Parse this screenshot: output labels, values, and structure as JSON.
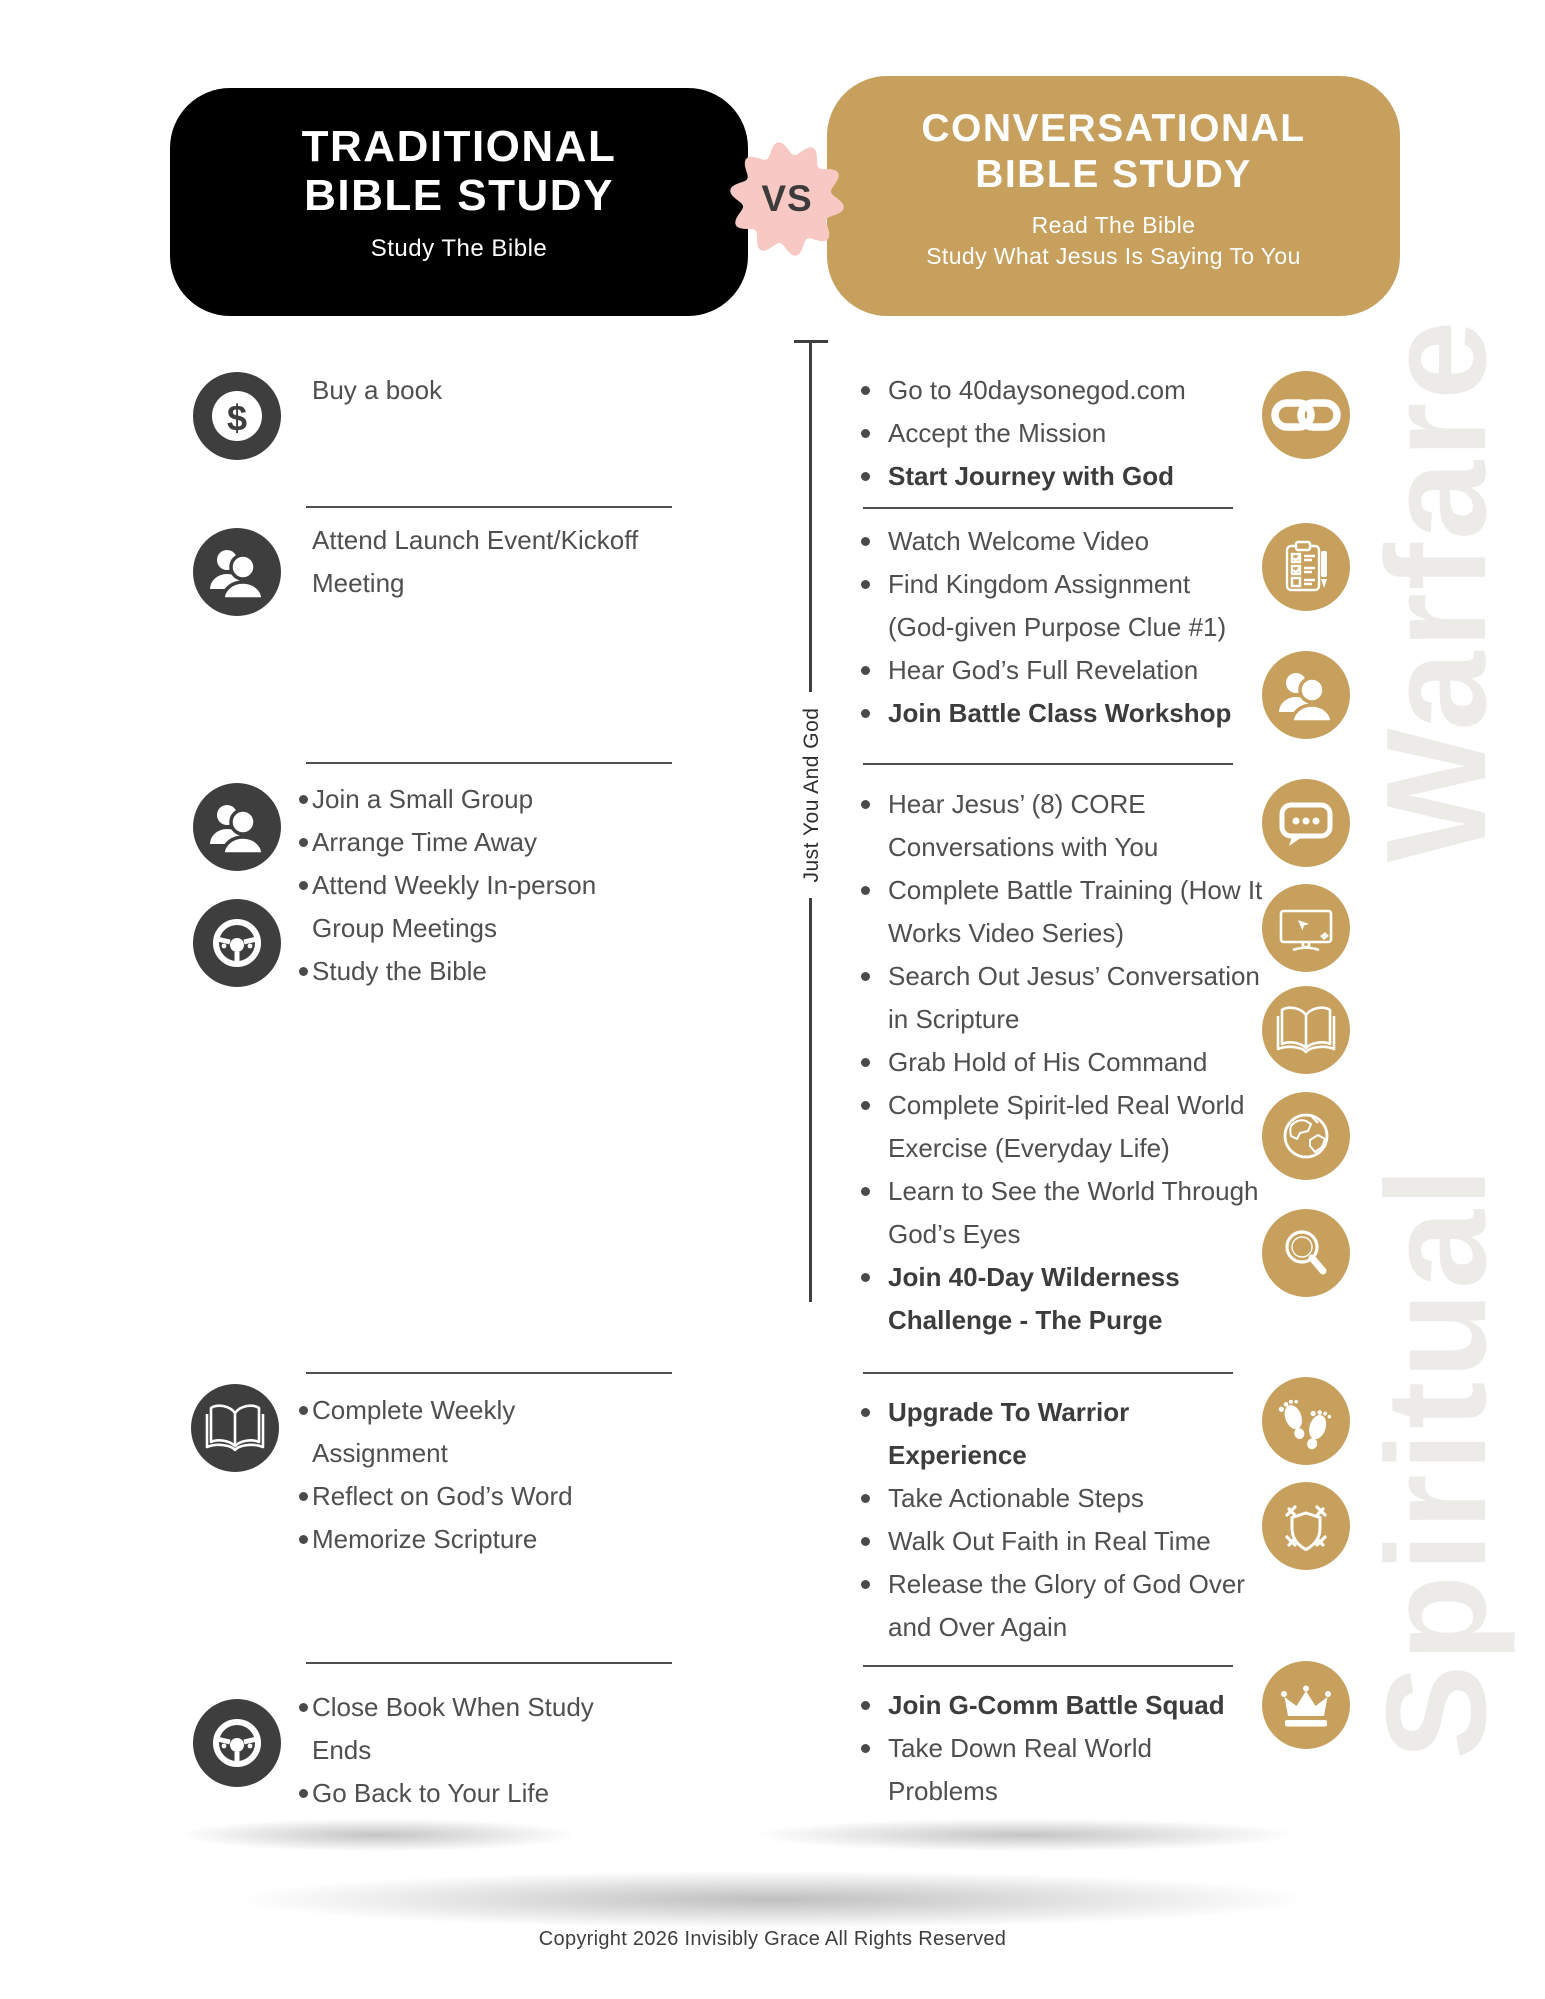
{
  "header": {
    "left": {
      "title_line1": "TRADITIONAL",
      "title_line2": "BIBLE STUDY",
      "subtitle": "Study The Bible"
    },
    "vs_badge": "VS",
    "right": {
      "title_line1": "CONVERSATIONAL",
      "title_line2": "BIBLE STUDY",
      "subtitle_line1": "Read The Bible",
      "subtitle_line2": "Study What Jesus Is Saying To You"
    }
  },
  "left_column": {
    "sections": [
      {
        "icons": [
          "dollar-icon"
        ],
        "bulleted": false,
        "items": [
          {
            "text": "Buy a book",
            "bold": false
          }
        ]
      },
      {
        "icons": [
          "users-icon"
        ],
        "bulleted": false,
        "items": [
          {
            "text": "Attend Launch Event/Kickoff Meeting",
            "bold": false
          }
        ]
      },
      {
        "icons": [
          "users-icon",
          "steering-wheel-icon"
        ],
        "bulleted": true,
        "items": [
          {
            "text": "Join a Small Group",
            "bold": false
          },
          {
            "text": "Arrange Time Away",
            "bold": false
          },
          {
            "text": "Attend Weekly In-person Group Meetings",
            "bold": false
          },
          {
            "text": "Study the Bible",
            "bold": false
          }
        ]
      },
      {
        "icons": [
          "open-book-icon"
        ],
        "bulleted": true,
        "items": [
          {
            "text": "Complete Weekly Assignment",
            "bold": false
          },
          {
            "text": "Reflect on God’s Word",
            "bold": false
          },
          {
            "text": "Memorize Scripture",
            "bold": false
          }
        ]
      },
      {
        "icons": [
          "steering-wheel-icon"
        ],
        "bulleted": true,
        "items": [
          {
            "text": "Close Book When Study Ends",
            "bold": false
          },
          {
            "text": "Go Back to Your Life",
            "bold": false
          }
        ]
      }
    ]
  },
  "connector": {
    "label": "Just You And God"
  },
  "right_column": {
    "sections": [
      {
        "icons": [
          "link-icon"
        ],
        "bulleted": true,
        "items": [
          {
            "text": "Go to 40daysonegod.com",
            "bold": false
          },
          {
            "text": "Accept the Mission",
            "bold": false
          },
          {
            "text": "Start Journey with God",
            "bold": true
          }
        ]
      },
      {
        "icons": [
          "clipboard-icon",
          "users-icon"
        ],
        "bulleted": true,
        "items": [
          {
            "text": "Watch Welcome Video",
            "bold": false
          },
          {
            "text": "Find Kingdom Assignment (God-given Purpose Clue #1)",
            "bold": false
          },
          {
            "text": "Hear God’s Full Revelation",
            "bold": false
          },
          {
            "text": "Join Battle Class Workshop",
            "bold": true
          }
        ]
      },
      {
        "icons": [
          "chat-icon",
          "monitor-icon",
          "open-book-icon",
          "globe-icon",
          "search-icon"
        ],
        "bulleted": true,
        "items": [
          {
            "text": "Hear Jesus’ (8) CORE Conversations with You",
            "bold": false
          },
          {
            "text": "Complete Battle  Training (How It Works Video Series)",
            "bold": false
          },
          {
            "text": "Search Out Jesus’ Conversation in Scripture",
            "bold": false
          },
          {
            "text": "Grab Hold of His Command",
            "bold": false
          },
          {
            "text": "Complete Spirit-led Real World Exercise (Everyday Life)",
            "bold": false
          },
          {
            "text": "Learn to See the World Through God’s Eyes",
            "bold": false
          },
          {
            "text": "Join 40-Day Wilderness Challenge - The Purge",
            "bold": true
          }
        ]
      },
      {
        "icons": [
          "footprints-icon",
          "shield-swords-icon"
        ],
        "bulleted": true,
        "items": [
          {
            "text": "Upgrade To Warrior Experience",
            "bold": true
          },
          {
            "text": "Take Actionable Steps",
            "bold": false
          },
          {
            "text": "Walk Out Faith in Real Time",
            "bold": false
          },
          {
            "text": "Release the Glory of God Over and Over Again",
            "bold": false
          }
        ]
      },
      {
        "icons": [
          "crown-icon"
        ],
        "bulleted": true,
        "items": [
          {
            "text": "Join G-Comm Battle Squad",
            "bold": true
          },
          {
            "text": "Take Down Real World Problems",
            "bold": false
          }
        ]
      }
    ]
  },
  "watermark": {
    "word_top": "Warfare",
    "word_bottom": "Spiritual"
  },
  "footer": {
    "copyright": "Copyright 2026 Invisibly Grace All Rights Reserved"
  },
  "colors": {
    "gold": "#C7A05E",
    "pink": "#F8C9C4",
    "header_black": "#000000",
    "icon_dark": "#3E3E3E",
    "text": "#4F4F4F",
    "divider": "#4A4A4A"
  }
}
